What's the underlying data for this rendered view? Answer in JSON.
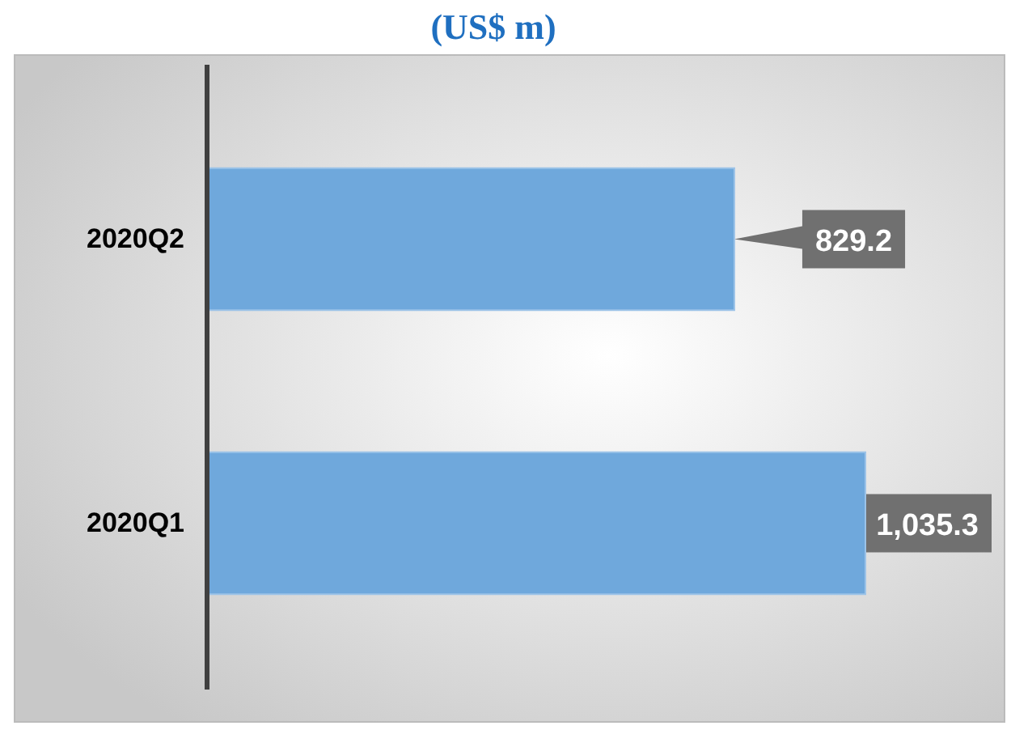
{
  "chart_data": {
    "type": "bar",
    "orientation": "horizontal",
    "title": "(US$ m)",
    "categories": [
      "2020Q2",
      "2020Q1"
    ],
    "values": [
      829.2,
      1035.3
    ],
    "value_labels": [
      "829.2",
      "1,035.3"
    ],
    "color": "#6fa8dc",
    "tick_labels": "y"
  }
}
